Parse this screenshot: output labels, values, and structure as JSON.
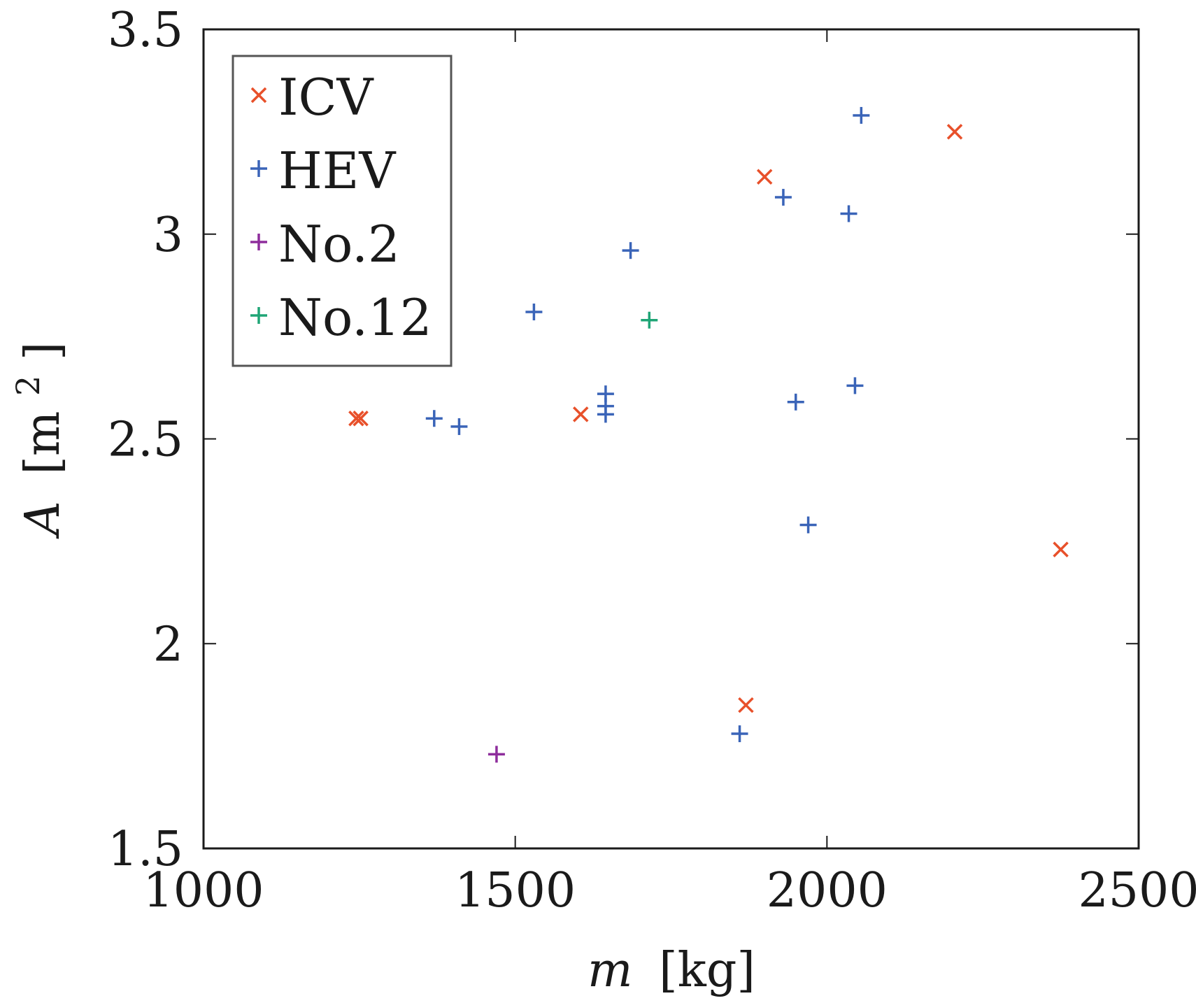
{
  "chart_data": {
    "type": "scatter",
    "title": "",
    "xlabel_var": "m",
    "xlabel_unit": "[kg]",
    "ylabel_var": "A",
    "ylabel_unit": "[m",
    "ylabel_sup": "2",
    "ylabel_close": "]",
    "xlim": [
      1000,
      2500
    ],
    "ylim": [
      1.5,
      3.5
    ],
    "x_ticks": [
      1000,
      1500,
      2000,
      2500
    ],
    "y_ticks": [
      1.5,
      2,
      2.5,
      3,
      3.5
    ],
    "x_tick_labels": [
      "1000",
      "1500",
      "2000",
      "2500"
    ],
    "y_tick_labels": [
      "1.5",
      "2",
      "2.5",
      "3",
      "3.5"
    ],
    "legend_position": "top-left",
    "series": [
      {
        "name": "ICV",
        "marker": "x",
        "color": "#e8502a",
        "points": [
          [
            1245,
            2.55
          ],
          [
            1252,
            2.55
          ],
          [
            1605,
            2.56
          ],
          [
            1870,
            1.85
          ],
          [
            1900,
            3.14
          ],
          [
            2205,
            3.25
          ],
          [
            2375,
            2.23
          ]
        ]
      },
      {
        "name": "HEV",
        "marker": "+",
        "color": "#3a64b8",
        "points": [
          [
            1370,
            2.55
          ],
          [
            1410,
            2.53
          ],
          [
            1530,
            2.81
          ],
          [
            1645,
            2.56
          ],
          [
            1645,
            2.58
          ],
          [
            1645,
            2.61
          ],
          [
            1685,
            2.96
          ],
          [
            1860,
            1.78
          ],
          [
            1930,
            3.09
          ],
          [
            1950,
            2.59
          ],
          [
            1970,
            2.29
          ],
          [
            2035,
            3.05
          ],
          [
            2045,
            2.63
          ],
          [
            2055,
            3.29
          ]
        ]
      },
      {
        "name": "No.2",
        "marker": "+",
        "color": "#8e2d9c",
        "points": [
          [
            1470,
            1.73
          ]
        ]
      },
      {
        "name": "No.12",
        "marker": "+",
        "color": "#1fa576",
        "points": [
          [
            1715,
            2.79
          ]
        ]
      }
    ]
  }
}
